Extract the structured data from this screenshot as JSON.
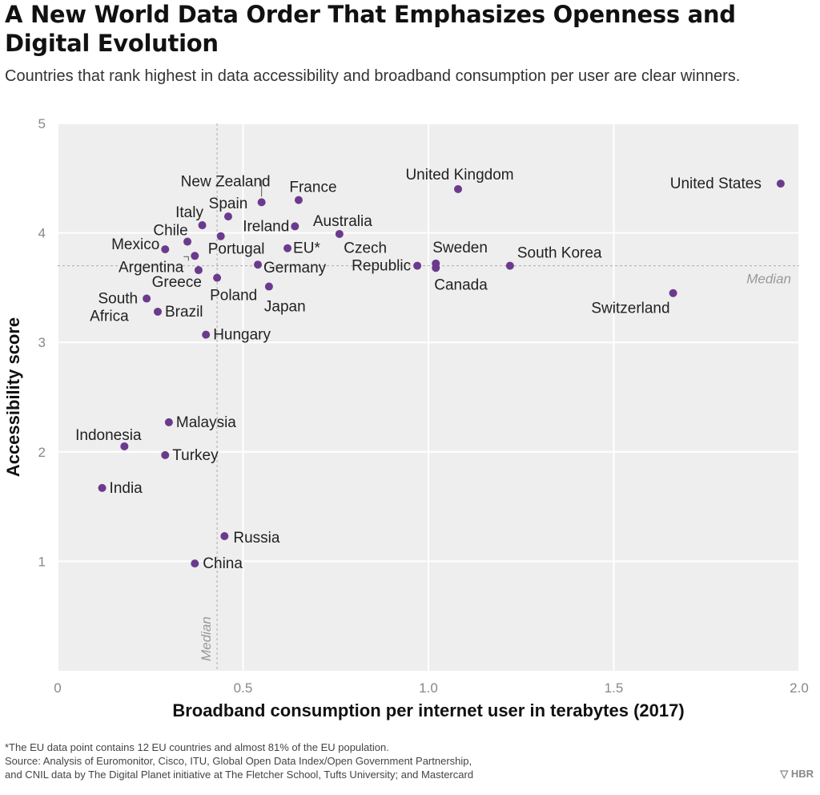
{
  "title": "A New World Data Order That Emphasizes Openness and Digital Evolution",
  "subtitle": "Countries that rank highest in data accessibility and broadband consumption per user are clear winners.",
  "chart_data": {
    "type": "scatter",
    "xlabel": "Broadband consumption per internet user in terabytes (2017)",
    "ylabel": "Accessibility score",
    "xlim": [
      0,
      2.0
    ],
    "ylim": [
      0,
      5
    ],
    "x_ticks": [
      "0",
      "0.5",
      "1.0",
      "1.5",
      "2.0"
    ],
    "x_tick_values": [
      0,
      0.5,
      1.0,
      1.5,
      2.0
    ],
    "y_ticks": [
      "1",
      "2",
      "3",
      "4",
      "5"
    ],
    "y_tick_values": [
      1,
      2,
      3,
      4,
      5
    ],
    "median_x": 0.43,
    "median_y": 3.7,
    "median_label": "Median",
    "point_color": "#6b3a8e",
    "background": "#eeeeee",
    "points": [
      {
        "label": "United States",
        "x": 1.95,
        "y": 4.45
      },
      {
        "label": "United Kingdom",
        "x": 1.08,
        "y": 4.4
      },
      {
        "label": "France",
        "x": 0.65,
        "y": 4.3
      },
      {
        "label": "New Zealand",
        "x": 0.55,
        "y": 4.28
      },
      {
        "label": "Spain",
        "x": 0.46,
        "y": 4.15
      },
      {
        "label": "Italy",
        "x": 0.39,
        "y": 4.07
      },
      {
        "label": "Ireland",
        "x": 0.64,
        "y": 4.06
      },
      {
        "label": "Australia",
        "x": 0.76,
        "y": 3.99
      },
      {
        "label": "Portugal",
        "x": 0.44,
        "y": 3.97
      },
      {
        "label": "Chile",
        "x": 0.35,
        "y": 3.92
      },
      {
        "label": "Mexico",
        "x": 0.29,
        "y": 3.85
      },
      {
        "label": "EU*",
        "x": 0.62,
        "y": 3.86
      },
      {
        "label": "Argentina",
        "x": 0.37,
        "y": 3.79
      },
      {
        "label": "Germany",
        "x": 0.54,
        "y": 3.71
      },
      {
        "label": "Czech Republic",
        "x": 0.97,
        "y": 3.7
      },
      {
        "label": "Sweden",
        "x": 1.02,
        "y": 3.72
      },
      {
        "label": "Canada",
        "x": 1.02,
        "y": 3.68
      },
      {
        "label": "South Korea",
        "x": 1.22,
        "y": 3.7
      },
      {
        "label": "Greece",
        "x": 0.38,
        "y": 3.66
      },
      {
        "label": "Poland",
        "x": 0.43,
        "y": 3.59
      },
      {
        "label": "Japan",
        "x": 0.57,
        "y": 3.51
      },
      {
        "label": "South Africa",
        "x": 0.24,
        "y": 3.4
      },
      {
        "label": "Switzerland",
        "x": 1.66,
        "y": 3.45
      },
      {
        "label": "Brazil",
        "x": 0.27,
        "y": 3.28
      },
      {
        "label": "Hungary",
        "x": 0.4,
        "y": 3.07
      },
      {
        "label": "Malaysia",
        "x": 0.3,
        "y": 2.27
      },
      {
        "label": "Indonesia",
        "x": 0.18,
        "y": 2.05
      },
      {
        "label": "Turkey",
        "x": 0.29,
        "y": 1.97
      },
      {
        "label": "India",
        "x": 0.12,
        "y": 1.67
      },
      {
        "label": "Russia",
        "x": 0.45,
        "y": 1.23
      },
      {
        "label": "China",
        "x": 0.37,
        "y": 0.98
      }
    ]
  },
  "footnote": {
    "line1": "*The EU data point contains 12 EU countries and almost 81% of the EU population.",
    "line2": "Source: Analysis of Euromonitor, Cisco, ITU, Global Open Data Index/Open Government Partnership,",
    "line3": "and CNIL data by The Digital Planet initiative at The Fletcher School, Tufts University; and Mastercard"
  },
  "logo": "▽ HBR"
}
